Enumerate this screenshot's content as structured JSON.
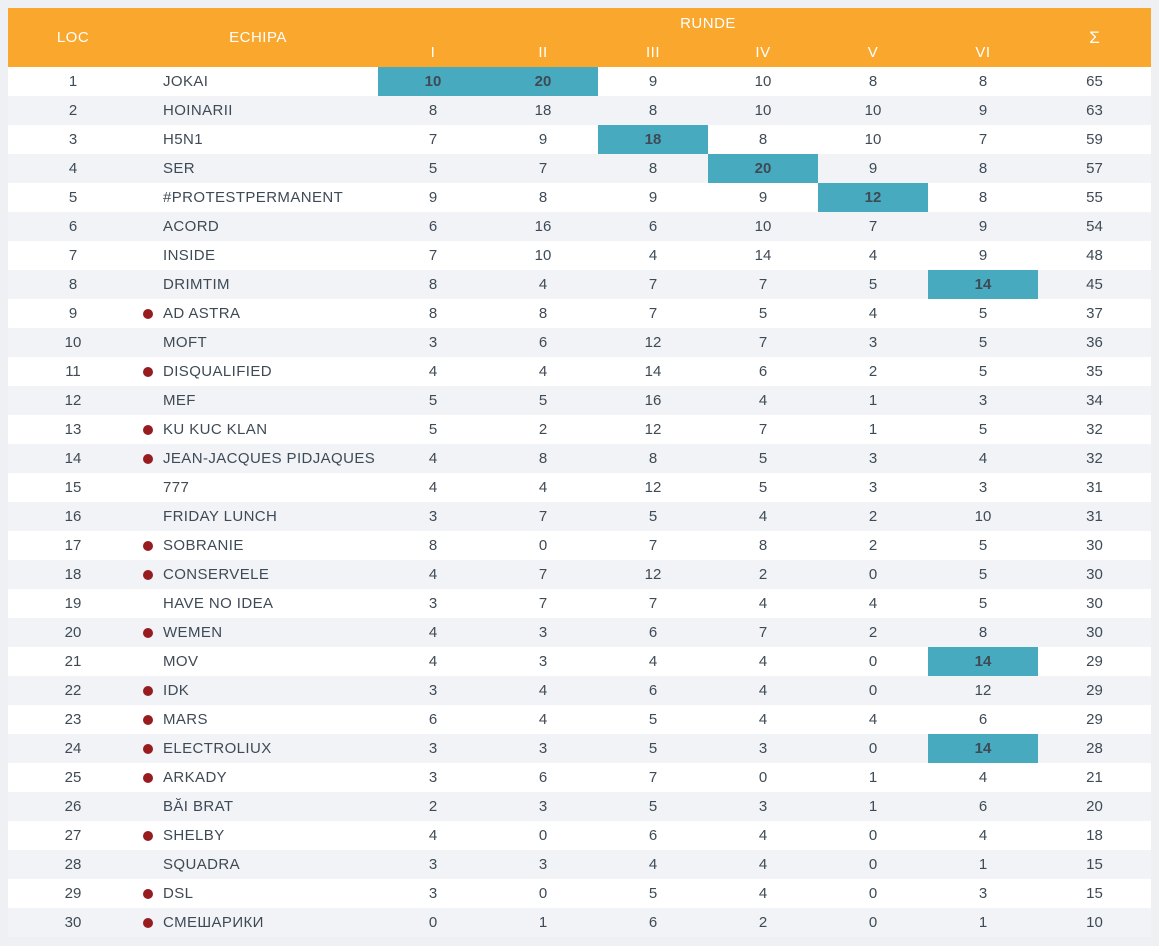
{
  "colors": {
    "page_bg": "#eef0f4",
    "header_bg": "#faa72e",
    "header_text": "#ffffff",
    "row_alt_bg": "#f1f3f7",
    "row_text": "#3e4a55",
    "highlight_bg": "#47aabe",
    "dot_red": "#971c20"
  },
  "table": {
    "header": {
      "loc": "LOC",
      "echipa": "ECHIPA",
      "runde": "RUNDE",
      "sum": "Σ"
    },
    "round_columns": [
      "I",
      "II",
      "III",
      "IV",
      "V",
      "VI"
    ],
    "rows": [
      {
        "loc": 1,
        "dot": false,
        "name": "JOKAI",
        "scores": [
          10,
          20,
          9,
          10,
          8,
          8
        ],
        "sum": 65,
        "highlights": [
          0,
          1
        ]
      },
      {
        "loc": 2,
        "dot": false,
        "name": "HOINARII",
        "scores": [
          8,
          18,
          8,
          10,
          10,
          9
        ],
        "sum": 63,
        "highlights": []
      },
      {
        "loc": 3,
        "dot": false,
        "name": "H5N1",
        "scores": [
          7,
          9,
          18,
          8,
          10,
          7
        ],
        "sum": 59,
        "highlights": [
          2
        ]
      },
      {
        "loc": 4,
        "dot": false,
        "name": "SER",
        "scores": [
          5,
          7,
          8,
          20,
          9,
          8
        ],
        "sum": 57,
        "highlights": [
          3
        ]
      },
      {
        "loc": 5,
        "dot": false,
        "name": "#PROTESTPERMANENT",
        "scores": [
          9,
          8,
          9,
          9,
          12,
          8
        ],
        "sum": 55,
        "highlights": [
          4
        ]
      },
      {
        "loc": 6,
        "dot": false,
        "name": "ACORD",
        "scores": [
          6,
          16,
          6,
          10,
          7,
          9
        ],
        "sum": 54,
        "highlights": []
      },
      {
        "loc": 7,
        "dot": false,
        "name": "INSIDE",
        "scores": [
          7,
          10,
          4,
          14,
          4,
          9
        ],
        "sum": 48,
        "highlights": []
      },
      {
        "loc": 8,
        "dot": false,
        "name": "DRIMTIM",
        "scores": [
          8,
          4,
          7,
          7,
          5,
          14
        ],
        "sum": 45,
        "highlights": [
          5
        ]
      },
      {
        "loc": 9,
        "dot": true,
        "name": "AD ASTRA",
        "scores": [
          8,
          8,
          7,
          5,
          4,
          5
        ],
        "sum": 37,
        "highlights": []
      },
      {
        "loc": 10,
        "dot": false,
        "name": "MOFT",
        "scores": [
          3,
          6,
          12,
          7,
          3,
          5
        ],
        "sum": 36,
        "highlights": []
      },
      {
        "loc": 11,
        "dot": true,
        "name": "DISQUALIFIED",
        "scores": [
          4,
          4,
          14,
          6,
          2,
          5
        ],
        "sum": 35,
        "highlights": []
      },
      {
        "loc": 12,
        "dot": false,
        "name": "MEF",
        "scores": [
          5,
          5,
          16,
          4,
          1,
          3
        ],
        "sum": 34,
        "highlights": []
      },
      {
        "loc": 13,
        "dot": true,
        "name": "KU KUC KLAN",
        "scores": [
          5,
          2,
          12,
          7,
          1,
          5
        ],
        "sum": 32,
        "highlights": []
      },
      {
        "loc": 14,
        "dot": true,
        "name": "JEAN-JACQUES PIDJAQUES",
        "scores": [
          4,
          8,
          8,
          5,
          3,
          4
        ],
        "sum": 32,
        "highlights": []
      },
      {
        "loc": 15,
        "dot": false,
        "name": "777",
        "scores": [
          4,
          4,
          12,
          5,
          3,
          3
        ],
        "sum": 31,
        "highlights": []
      },
      {
        "loc": 16,
        "dot": false,
        "name": "FRIDAY LUNCH",
        "scores": [
          3,
          7,
          5,
          4,
          2,
          10
        ],
        "sum": 31,
        "highlights": []
      },
      {
        "loc": 17,
        "dot": true,
        "name": "SOBRANIE",
        "scores": [
          8,
          0,
          7,
          8,
          2,
          5
        ],
        "sum": 30,
        "highlights": []
      },
      {
        "loc": 18,
        "dot": true,
        "name": "CONSERVELE",
        "scores": [
          4,
          7,
          12,
          2,
          0,
          5
        ],
        "sum": 30,
        "highlights": []
      },
      {
        "loc": 19,
        "dot": false,
        "name": "HAVE NO IDEA",
        "scores": [
          3,
          7,
          7,
          4,
          4,
          5
        ],
        "sum": 30,
        "highlights": []
      },
      {
        "loc": 20,
        "dot": true,
        "name": "WEMEN",
        "scores": [
          4,
          3,
          6,
          7,
          2,
          8
        ],
        "sum": 30,
        "highlights": []
      },
      {
        "loc": 21,
        "dot": false,
        "name": "MOV",
        "scores": [
          4,
          3,
          4,
          4,
          0,
          14
        ],
        "sum": 29,
        "highlights": [
          5
        ]
      },
      {
        "loc": 22,
        "dot": true,
        "name": "IDK",
        "scores": [
          3,
          4,
          6,
          4,
          0,
          12
        ],
        "sum": 29,
        "highlights": []
      },
      {
        "loc": 23,
        "dot": true,
        "name": "MARS",
        "scores": [
          6,
          4,
          5,
          4,
          4,
          6
        ],
        "sum": 29,
        "highlights": []
      },
      {
        "loc": 24,
        "dot": true,
        "name": "ELECTROLIUX",
        "scores": [
          3,
          3,
          5,
          3,
          0,
          14
        ],
        "sum": 28,
        "highlights": [
          5
        ]
      },
      {
        "loc": 25,
        "dot": true,
        "name": "ARKADY",
        "scores": [
          3,
          6,
          7,
          0,
          1,
          4
        ],
        "sum": 21,
        "highlights": []
      },
      {
        "loc": 26,
        "dot": false,
        "name": "BĂI BRAT",
        "scores": [
          2,
          3,
          5,
          3,
          1,
          6
        ],
        "sum": 20,
        "highlights": []
      },
      {
        "loc": 27,
        "dot": true,
        "name": "SHELBY",
        "scores": [
          4,
          0,
          6,
          4,
          0,
          4
        ],
        "sum": 18,
        "highlights": []
      },
      {
        "loc": 28,
        "dot": false,
        "name": "SQUADRA",
        "scores": [
          3,
          3,
          4,
          4,
          0,
          1
        ],
        "sum": 15,
        "highlights": []
      },
      {
        "loc": 29,
        "dot": true,
        "name": "DSL",
        "scores": [
          3,
          0,
          5,
          4,
          0,
          3
        ],
        "sum": 15,
        "highlights": []
      },
      {
        "loc": 30,
        "dot": true,
        "name": "СМЕШАРИКИ",
        "scores": [
          0,
          1,
          6,
          2,
          0,
          1
        ],
        "sum": 10,
        "highlights": []
      }
    ]
  }
}
